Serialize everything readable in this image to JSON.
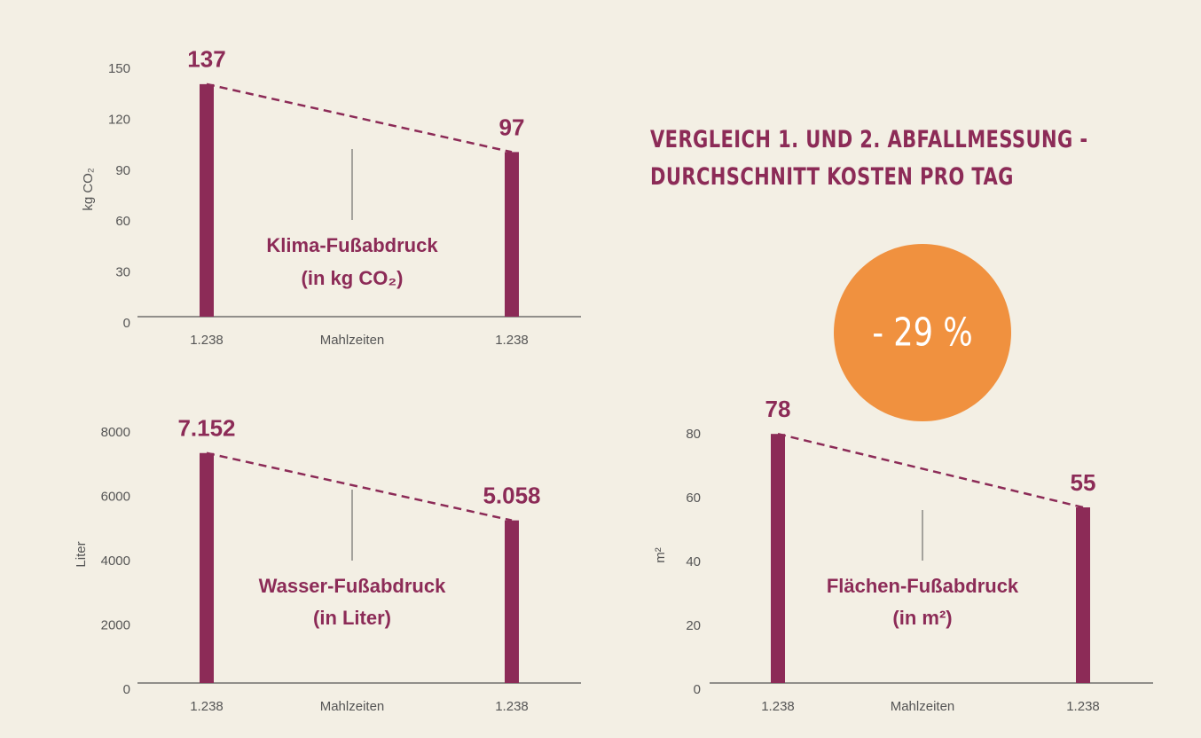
{
  "header": {
    "title_lines": [
      "VERGLEICH 1. UND 2. ABFALLMESSUNG -",
      "DURCHSCHNITT KOSTEN PRO TAG"
    ],
    "badge": "- 29 %"
  },
  "chart_data": [
    {
      "type": "bar",
      "ylabel": "kg CO₂",
      "xlabel": "Mahlzeiten",
      "categories": [
        "1.238",
        "1.238"
      ],
      "values": [
        137,
        97
      ],
      "color": "#8c2b57",
      "ylim": [
        0,
        150
      ],
      "yticks": [
        0,
        30,
        60,
        90,
        120,
        150
      ],
      "annotation": [
        "Klima-Fußabdruck",
        "(in kg CO₂)"
      ]
    },
    {
      "type": "bar",
      "ylabel": "Liter",
      "xlabel": "Mahlzeiten",
      "categories": [
        "1.238",
        "1.238"
      ],
      "values": [
        7152,
        5058
      ],
      "value_labels": [
        "7.152",
        "5.058"
      ],
      "color": "#8c2b57",
      "ylim": [
        0,
        8000
      ],
      "yticks": [
        0,
        2000,
        4000,
        6000,
        8000
      ],
      "annotation": [
        "Wasser-Fußabdruck",
        "(in Liter)"
      ]
    },
    {
      "type": "bar",
      "ylabel": "m²",
      "xlabel": "Mahlzeiten",
      "categories": [
        "1.238",
        "1.238"
      ],
      "values": [
        78,
        55
      ],
      "color": "#8c2b57",
      "ylim": [
        0,
        80
      ],
      "yticks": [
        0,
        20,
        40,
        60,
        80
      ],
      "annotation": [
        "Flächen-Fußabdruck",
        "(in m²)"
      ]
    }
  ]
}
